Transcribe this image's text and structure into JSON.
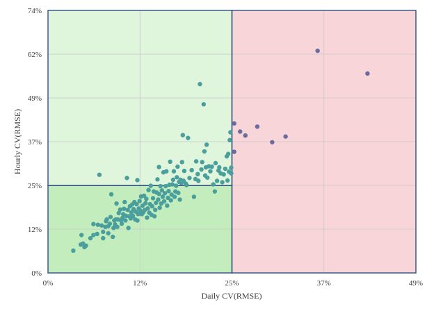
{
  "chart_data": {
    "type": "scatter",
    "xlabel": "Daily CV(RMSE)",
    "ylabel": "Hourly CV(RMSE)",
    "xlim": [
      0,
      49.4
    ],
    "ylim": [
      0,
      74.1
    ],
    "xticks": [
      "0%",
      "12%",
      "25%",
      "37%",
      "49%"
    ],
    "yticks": [
      "0%",
      "12%",
      "25%",
      "37%",
      "49%",
      "62%",
      "74%"
    ],
    "xtick_values": [
      0,
      12.35,
      24.7,
      37.05,
      49.4
    ],
    "ytick_values": [
      0,
      12.35,
      24.7,
      37.05,
      49.4,
      61.75,
      74.1
    ],
    "grid": true,
    "regions": [
      {
        "name": "light-green",
        "x": [
          0,
          24.7
        ],
        "y": [
          24.7,
          74.1
        ],
        "color": "#dff5dc"
      },
      {
        "name": "dark-green",
        "x": [
          0,
          24.7
        ],
        "y": [
          0,
          24.7
        ],
        "color": "#c3edbd"
      },
      {
        "name": "pink",
        "x": [
          24.7,
          49.4
        ],
        "y": [
          0,
          74.1
        ],
        "color": "#f8d5d8"
      }
    ],
    "colors": {
      "inside_points": "#4a9e9c",
      "outside_points": "#6b6b9e",
      "border": "#2f4f80"
    },
    "series": [
      {
        "points": [
          [
            3.4,
            6.3
          ],
          [
            4.4,
            8.0
          ],
          [
            4.5,
            10.7
          ],
          [
            4.7,
            8.3
          ],
          [
            4.9,
            7.3
          ],
          [
            5.1,
            7.7
          ],
          [
            5.7,
            9.8
          ],
          [
            6.1,
            10.7
          ],
          [
            6.1,
            13.8
          ],
          [
            6.6,
            11.0
          ],
          [
            6.7,
            13.6
          ],
          [
            6.9,
            27.7
          ],
          [
            7.2,
            13.4
          ],
          [
            7.4,
            9.8
          ],
          [
            7.4,
            11.6
          ],
          [
            7.7,
            13.0
          ],
          [
            7.8,
            14.6
          ],
          [
            7.9,
            15.1
          ],
          [
            8.1,
            11.2
          ],
          [
            8.1,
            13.2
          ],
          [
            8.3,
            13.9
          ],
          [
            8.4,
            15.8
          ],
          [
            8.5,
            22.2
          ],
          [
            8.7,
            10.2
          ],
          [
            8.8,
            12.7
          ],
          [
            8.9,
            14.8
          ],
          [
            9.0,
            13.7
          ],
          [
            9.1,
            15.1
          ],
          [
            9.2,
            19.6
          ],
          [
            9.3,
            13.0
          ],
          [
            9.4,
            15.1
          ],
          [
            9.5,
            16.9
          ],
          [
            9.7,
            17.9
          ],
          [
            9.8,
            14.8
          ],
          [
            9.9,
            13.9
          ],
          [
            10.0,
            15.5
          ],
          [
            10.1,
            16.6
          ],
          [
            10.2,
            18.1
          ],
          [
            10.3,
            20.0
          ],
          [
            10.4,
            14.8
          ],
          [
            10.5,
            16.1
          ],
          [
            10.6,
            26.8
          ],
          [
            10.7,
            17.8
          ],
          [
            10.8,
            12.7
          ],
          [
            10.9,
            16.0
          ],
          [
            11.0,
            18.8
          ],
          [
            11.1,
            15.4
          ],
          [
            11.2,
            17.1
          ],
          [
            11.3,
            19.3
          ],
          [
            11.4,
            16.1
          ],
          [
            11.5,
            18.0
          ],
          [
            11.6,
            20.0
          ],
          [
            11.7,
            15.1
          ],
          [
            11.8,
            17.3
          ],
          [
            11.9,
            19.4
          ],
          [
            12.0,
            14.8
          ],
          [
            12.0,
            26.2
          ],
          [
            12.1,
            16.6
          ],
          [
            12.2,
            18.2
          ],
          [
            12.3,
            20.3
          ],
          [
            12.4,
            17.6
          ],
          [
            12.5,
            21.6
          ],
          [
            12.6,
            16.6
          ],
          [
            12.7,
            19.0
          ],
          [
            12.8,
            17.1
          ],
          [
            12.9,
            21.8
          ],
          [
            13.0,
            17.8
          ],
          [
            13.1,
            19.7
          ],
          [
            13.2,
            20.9
          ],
          [
            13.3,
            15.6
          ],
          [
            13.4,
            18.2
          ],
          [
            13.5,
            23.4
          ],
          [
            13.6,
            17.0
          ],
          [
            13.7,
            19.4
          ],
          [
            13.8,
            24.6
          ],
          [
            13.9,
            16.4
          ],
          [
            14.0,
            18.8
          ],
          [
            14.1,
            21.1
          ],
          [
            14.2,
            23.0
          ],
          [
            14.3,
            16.0
          ],
          [
            14.4,
            17.8
          ],
          [
            14.5,
            19.8
          ],
          [
            14.6,
            22.7
          ],
          [
            14.7,
            26.4
          ],
          [
            14.8,
            20.7
          ],
          [
            14.9,
            22.3
          ],
          [
            14.9,
            29.9
          ],
          [
            15.0,
            18.4
          ],
          [
            15.1,
            24.5
          ],
          [
            15.2,
            19.6
          ],
          [
            15.3,
            23.3
          ],
          [
            15.4,
            21.5
          ],
          [
            15.5,
            28.4
          ],
          [
            15.6,
            20.2
          ],
          [
            15.7,
            22.5
          ],
          [
            15.8,
            24.5
          ],
          [
            15.9,
            28.7
          ],
          [
            16.0,
            19.0
          ],
          [
            16.1,
            21.2
          ],
          [
            16.2,
            23.1
          ],
          [
            16.3,
            24.9
          ],
          [
            16.4,
            31.4
          ],
          [
            16.5,
            20.5
          ],
          [
            16.6,
            22.1
          ],
          [
            16.7,
            25.0
          ],
          [
            16.8,
            26.3
          ],
          [
            16.9,
            28.7
          ],
          [
            17.0,
            21.5
          ],
          [
            17.1,
            23.0
          ],
          [
            17.2,
            24.6
          ],
          [
            17.3,
            27.0
          ],
          [
            17.4,
            30.0
          ],
          [
            17.5,
            22.6
          ],
          [
            17.6,
            25.7
          ],
          [
            17.7,
            20.7
          ],
          [
            17.8,
            26.3
          ],
          [
            17.9,
            25.4
          ],
          [
            18.0,
            31.3
          ],
          [
            18.1,
            38.9
          ],
          [
            18.2,
            26.0
          ],
          [
            18.3,
            28.8
          ],
          [
            18.5,
            25.2
          ],
          [
            18.6,
            24.8
          ],
          [
            18.8,
            38.1
          ],
          [
            19.0,
            26.8
          ],
          [
            19.3,
            29.0
          ],
          [
            19.6,
            21.5
          ],
          [
            19.8,
            26.5
          ],
          [
            19.9,
            31.5
          ],
          [
            20.1,
            27.9
          ],
          [
            20.2,
            26.0
          ],
          [
            20.4,
            53.3
          ],
          [
            20.6,
            29.2
          ],
          [
            20.7,
            31.3
          ],
          [
            20.9,
            47.6
          ],
          [
            21.0,
            34.3
          ],
          [
            21.1,
            27.5
          ],
          [
            21.2,
            29.8
          ],
          [
            21.3,
            36.2
          ],
          [
            21.4,
            26.9
          ],
          [
            21.6,
            30.1
          ],
          [
            21.8,
            28.7
          ],
          [
            22.0,
            30.0
          ],
          [
            22.2,
            25.0
          ],
          [
            22.4,
            23.0
          ],
          [
            22.5,
            31.0
          ],
          [
            22.7,
            26.0
          ],
          [
            22.9,
            28.9
          ],
          [
            23.0,
            29.8
          ],
          [
            23.2,
            28.1
          ],
          [
            23.4,
            25.6
          ],
          [
            23.6,
            27.8
          ],
          [
            23.8,
            29.4
          ],
          [
            24.0,
            32.9
          ],
          [
            24.1,
            26.1
          ],
          [
            24.2,
            33.6
          ],
          [
            24.3,
            28.6
          ],
          [
            24.4,
            37.5
          ],
          [
            24.5,
            39.7
          ],
          [
            24.6,
            28.1
          ],
          [
            24.6,
            29.7
          ]
        ]
      },
      {
        "points": [
          [
            25.0,
            42.2
          ],
          [
            25.0,
            34.2
          ],
          [
            25.8,
            39.9
          ],
          [
            26.5,
            38.8
          ],
          [
            28.1,
            41.3
          ],
          [
            30.1,
            36.9
          ],
          [
            31.9,
            38.5
          ],
          [
            36.2,
            62.7
          ],
          [
            42.9,
            56.3
          ]
        ]
      }
    ]
  }
}
